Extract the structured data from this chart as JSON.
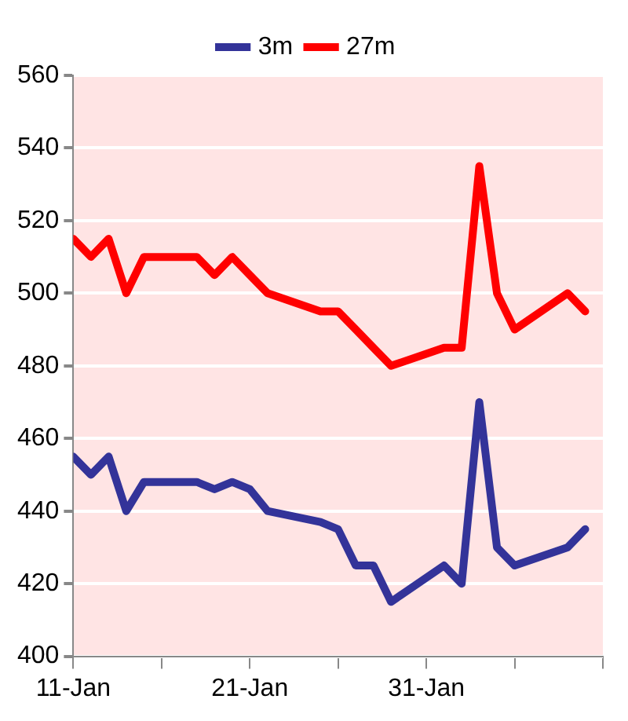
{
  "chart_data": {
    "type": "line",
    "x": [
      "--01-11",
      "--01-12",
      "--01-13",
      "--01-14",
      "--01-15",
      "--01-16",
      "--01-17",
      "--01-18",
      "--01-19",
      "--01-20",
      "--01-21",
      "--01-22",
      "--01-25",
      "--01-26",
      "--01-27",
      "--01-28",
      "--01-29",
      "--02-01",
      "--02-02",
      "--02-03",
      "--02-04",
      "--02-05",
      "--02-08",
      "--02-09"
    ],
    "series": [
      {
        "name": "3m",
        "color": "#333399",
        "values": [
          455,
          450,
          455,
          440,
          448,
          448,
          448,
          448,
          446,
          448,
          446,
          440,
          437,
          435,
          425,
          425,
          415,
          425,
          420,
          470,
          430,
          425,
          430,
          435
        ]
      },
      {
        "name": "27m",
        "color": "#ff0000",
        "values": [
          515,
          510,
          515,
          500,
          510,
          510,
          510,
          510,
          505,
          510,
          505,
          500,
          495,
          495,
          490,
          485,
          480,
          485,
          485,
          535,
          500,
          490,
          500,
          495
        ]
      }
    ],
    "xlim": [
      "--01-11",
      "--02-10"
    ],
    "xticks": [
      {
        "value": "--01-11",
        "label": "11-Jan"
      },
      {
        "value": "--01-16",
        "label": null
      },
      {
        "value": "--01-21",
        "label": "21-Jan"
      },
      {
        "value": "--01-26",
        "label": null
      },
      {
        "value": "--01-31",
        "label": "31-Jan"
      },
      {
        "value": "--02-05",
        "label": null
      },
      {
        "value": "--02-10",
        "label": null
      }
    ],
    "ylim": [
      400,
      560
    ],
    "yticks": [
      400,
      420,
      440,
      460,
      480,
      500,
      520,
      540,
      560
    ],
    "grid": "y",
    "legend": "top",
    "marker": "none",
    "line_style": "solid"
  }
}
